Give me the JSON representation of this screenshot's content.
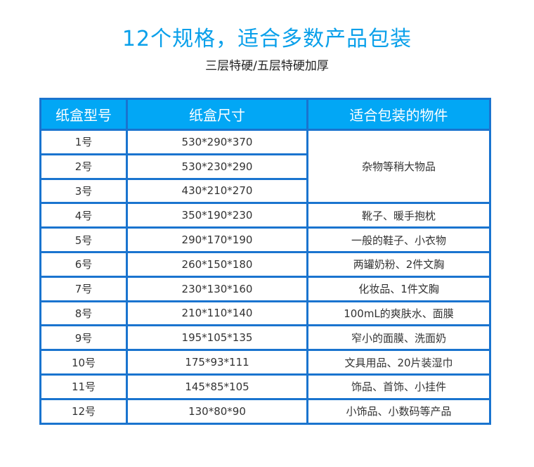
{
  "title": "12个规格，适合多数产品包装",
  "subtitle": "三层特硬/五层特硬加厚",
  "colors": {
    "title": "#0aa0ea",
    "header_bg": "#02a7f5",
    "border": "#1a74cf"
  },
  "table": {
    "headers": [
      "纸盒型号",
      "纸盒尺寸",
      "适合包装的物件"
    ],
    "rows": [
      {
        "model": "1号",
        "size": "530*290*370",
        "items": "杂物等稍大物品"
      },
      {
        "model": "2号",
        "size": "530*230*290"
      },
      {
        "model": "3号",
        "size": "430*210*270"
      },
      {
        "model": "4号",
        "size": "350*190*230",
        "items": "靴子、暖手抱枕"
      },
      {
        "model": "5号",
        "size": "290*170*190",
        "items": "一般的鞋子、小衣物"
      },
      {
        "model": "6号",
        "size": "260*150*180",
        "items": "两罐奶粉、2件文胸"
      },
      {
        "model": "7号",
        "size": "230*130*160",
        "items": "化妆品、1件文胸"
      },
      {
        "model": "8号",
        "size": "210*110*140",
        "items": "100mL的爽肤水、面膜"
      },
      {
        "model": "9号",
        "size": "195*105*135",
        "items": "窄小的面膜、洗面奶"
      },
      {
        "model": "10号",
        "size": "175*93*111",
        "items": "文具用品、20片装湿巾"
      },
      {
        "model": "11号",
        "size": "145*85*105",
        "items": "饰品、首饰、小挂件"
      },
      {
        "model": "12号",
        "size": "130*80*90",
        "items": "小饰品、小数码等产品"
      }
    ]
  }
}
